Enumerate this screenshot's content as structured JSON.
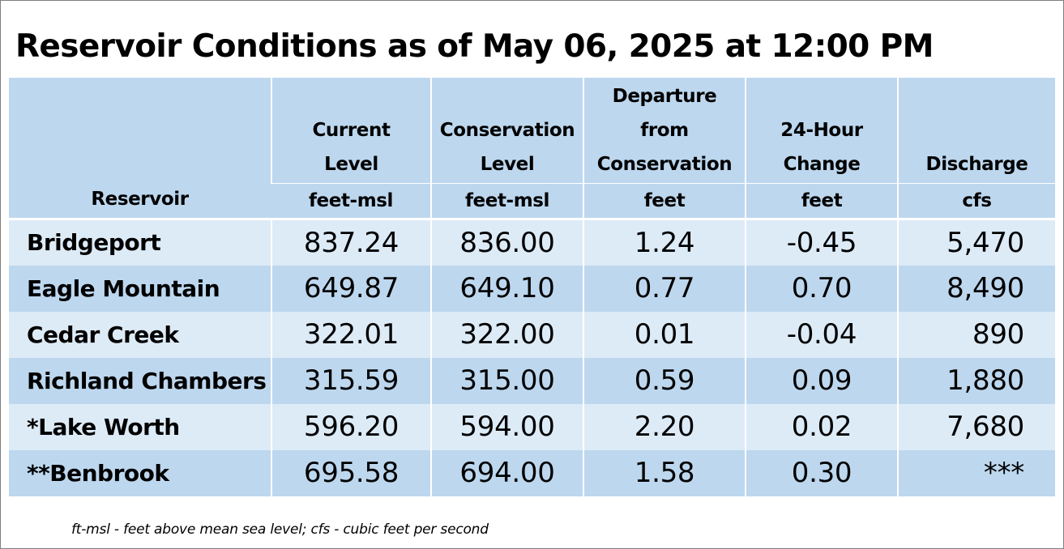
{
  "title": "Reservoir Conditions as of May 06, 2025 at 12:00 PM",
  "table": {
    "headers": {
      "reservoir": "Reservoir",
      "current_level": [
        "Current",
        "Level"
      ],
      "conservation_level": [
        "Conservation",
        "Level"
      ],
      "departure": [
        "Departure",
        "from",
        "Conservation"
      ],
      "change_24h": [
        "24-Hour",
        "Change"
      ],
      "discharge": "Discharge"
    },
    "units": {
      "current_level": "feet-msl",
      "conservation_level": "feet-msl",
      "departure": "feet",
      "change_24h": "feet",
      "discharge": "cfs"
    },
    "rows": [
      {
        "name": "Bridgeport",
        "current": "837.24",
        "conservation": "836.00",
        "departure": "1.24",
        "change": "-0.45",
        "discharge": "5,470"
      },
      {
        "name": "Eagle Mountain",
        "current": "649.87",
        "conservation": "649.10",
        "departure": "0.77",
        "change": "0.70",
        "discharge": "8,490"
      },
      {
        "name": "Cedar Creek",
        "current": "322.01",
        "conservation": "322.00",
        "departure": "0.01",
        "change": "-0.04",
        "discharge": "890"
      },
      {
        "name": "Richland Chambers",
        "current": "315.59",
        "conservation": "315.00",
        "departure": "0.59",
        "change": "0.09",
        "discharge": "1,880"
      },
      {
        "name": "*Lake Worth",
        "current": "596.20",
        "conservation": "594.00",
        "departure": "2.20",
        "change": "0.02",
        "discharge": "7,680"
      },
      {
        "name": "**Benbrook",
        "current": "695.58",
        "conservation": "694.00",
        "departure": "1.58",
        "change": "0.30",
        "discharge": "***"
      }
    ]
  },
  "footnote": "ft-msl - feet above mean sea level; cfs - cubic feet per second",
  "colors": {
    "header_bg": "#bdd7ee",
    "row_light": "#ddebf7",
    "row_dark": "#bdd7ee"
  }
}
